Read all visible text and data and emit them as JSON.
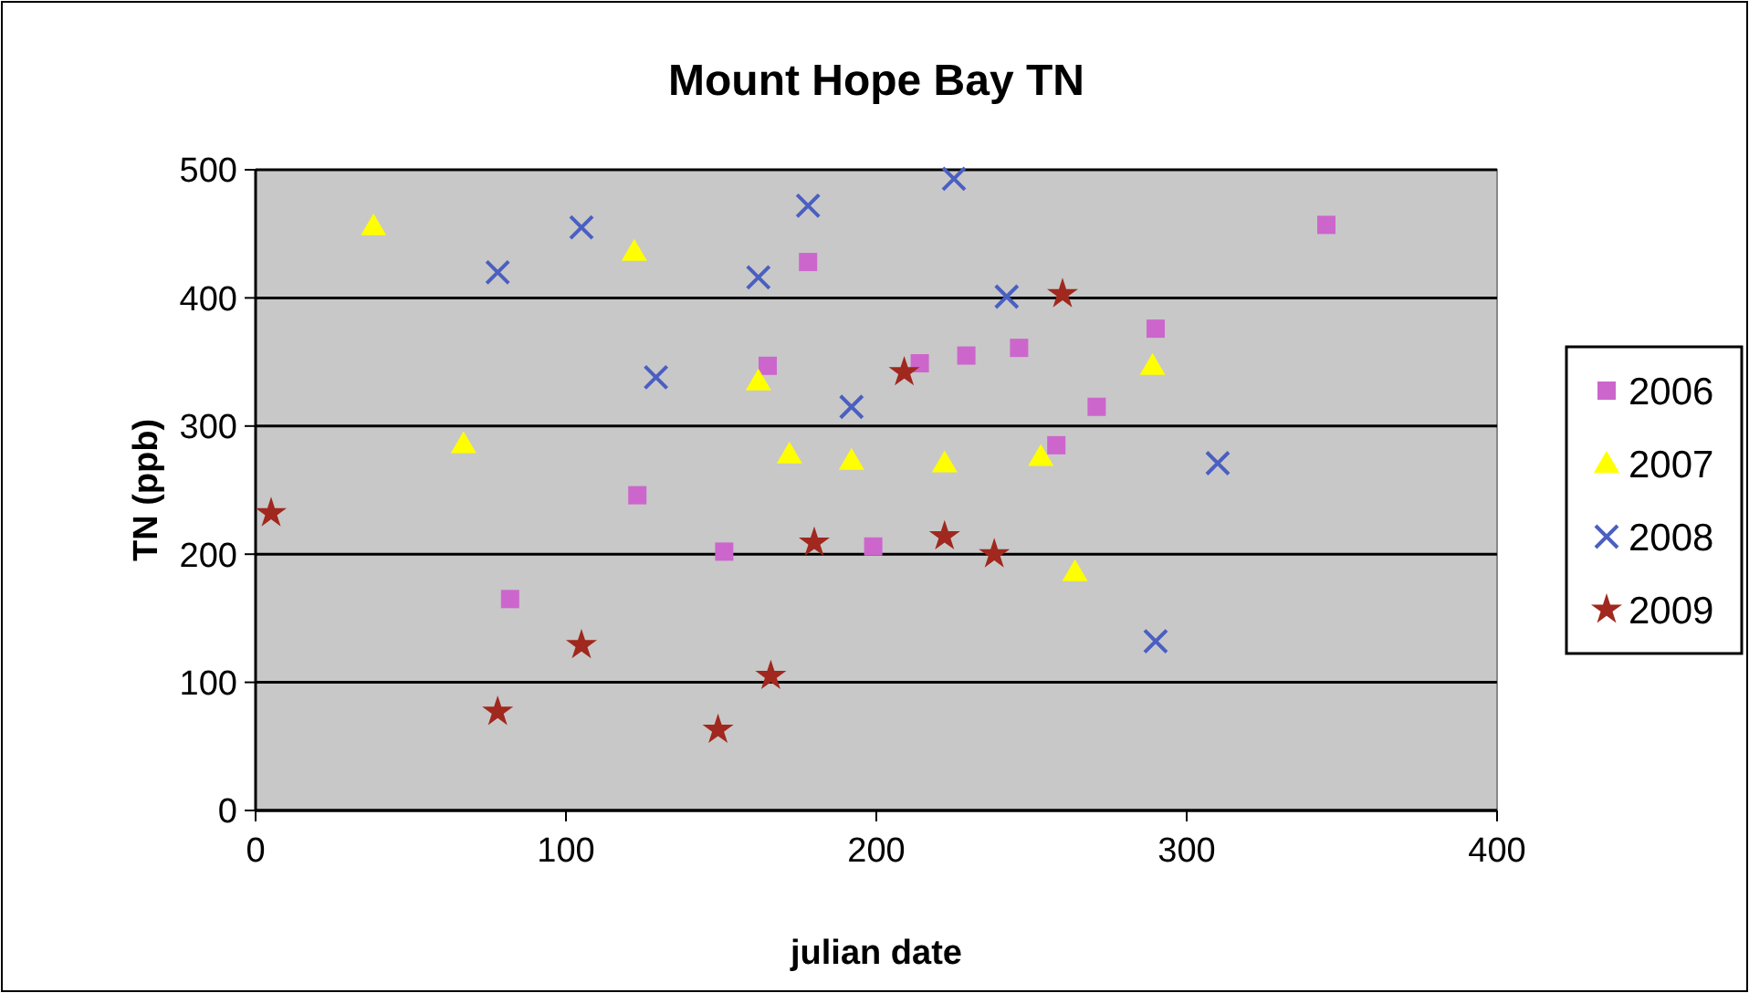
{
  "chart_data": {
    "type": "scatter",
    "title": "Mount Hope Bay TN",
    "xlabel": "julian date",
    "ylabel": "TN (ppb)",
    "xlim": [
      0,
      400
    ],
    "xticks": [
      0,
      100,
      200,
      300,
      400
    ],
    "ylim": [
      0,
      500
    ],
    "yticks": [
      0,
      100,
      200,
      300,
      400,
      500
    ],
    "grid": "y",
    "legend": "right",
    "series": [
      {
        "name": "2006",
        "color": "#cc66cc",
        "marker": "square",
        "x": [
          82,
          123,
          151,
          165,
          178,
          199,
          214,
          229,
          246,
          258,
          271,
          290,
          345
        ],
        "values": [
          165,
          246,
          202,
          347,
          428,
          206,
          349,
          355,
          361,
          285,
          315,
          376,
          457
        ]
      },
      {
        "name": "2007",
        "color": "#ffff00",
        "marker": "triangle",
        "x": [
          38,
          67,
          122,
          162,
          172,
          192,
          222,
          253,
          264,
          289
        ],
        "values": [
          456,
          286,
          436,
          335,
          278,
          273,
          271,
          276,
          186,
          347
        ]
      },
      {
        "name": "2008",
        "color": "#4a5fc1",
        "marker": "cross",
        "x": [
          78,
          105,
          129,
          162,
          178,
          192,
          225,
          242,
          290,
          310
        ],
        "values": [
          420,
          455,
          338,
          416,
          472,
          315,
          493,
          401,
          132,
          271
        ]
      },
      {
        "name": "2009",
        "color": "#a0281e",
        "marker": "star",
        "x": [
          5,
          78,
          105,
          149,
          166,
          180,
          209,
          222,
          238,
          260
        ],
        "values": [
          232,
          77,
          129,
          63,
          105,
          209,
          342,
          214,
          200,
          403
        ]
      }
    ]
  }
}
